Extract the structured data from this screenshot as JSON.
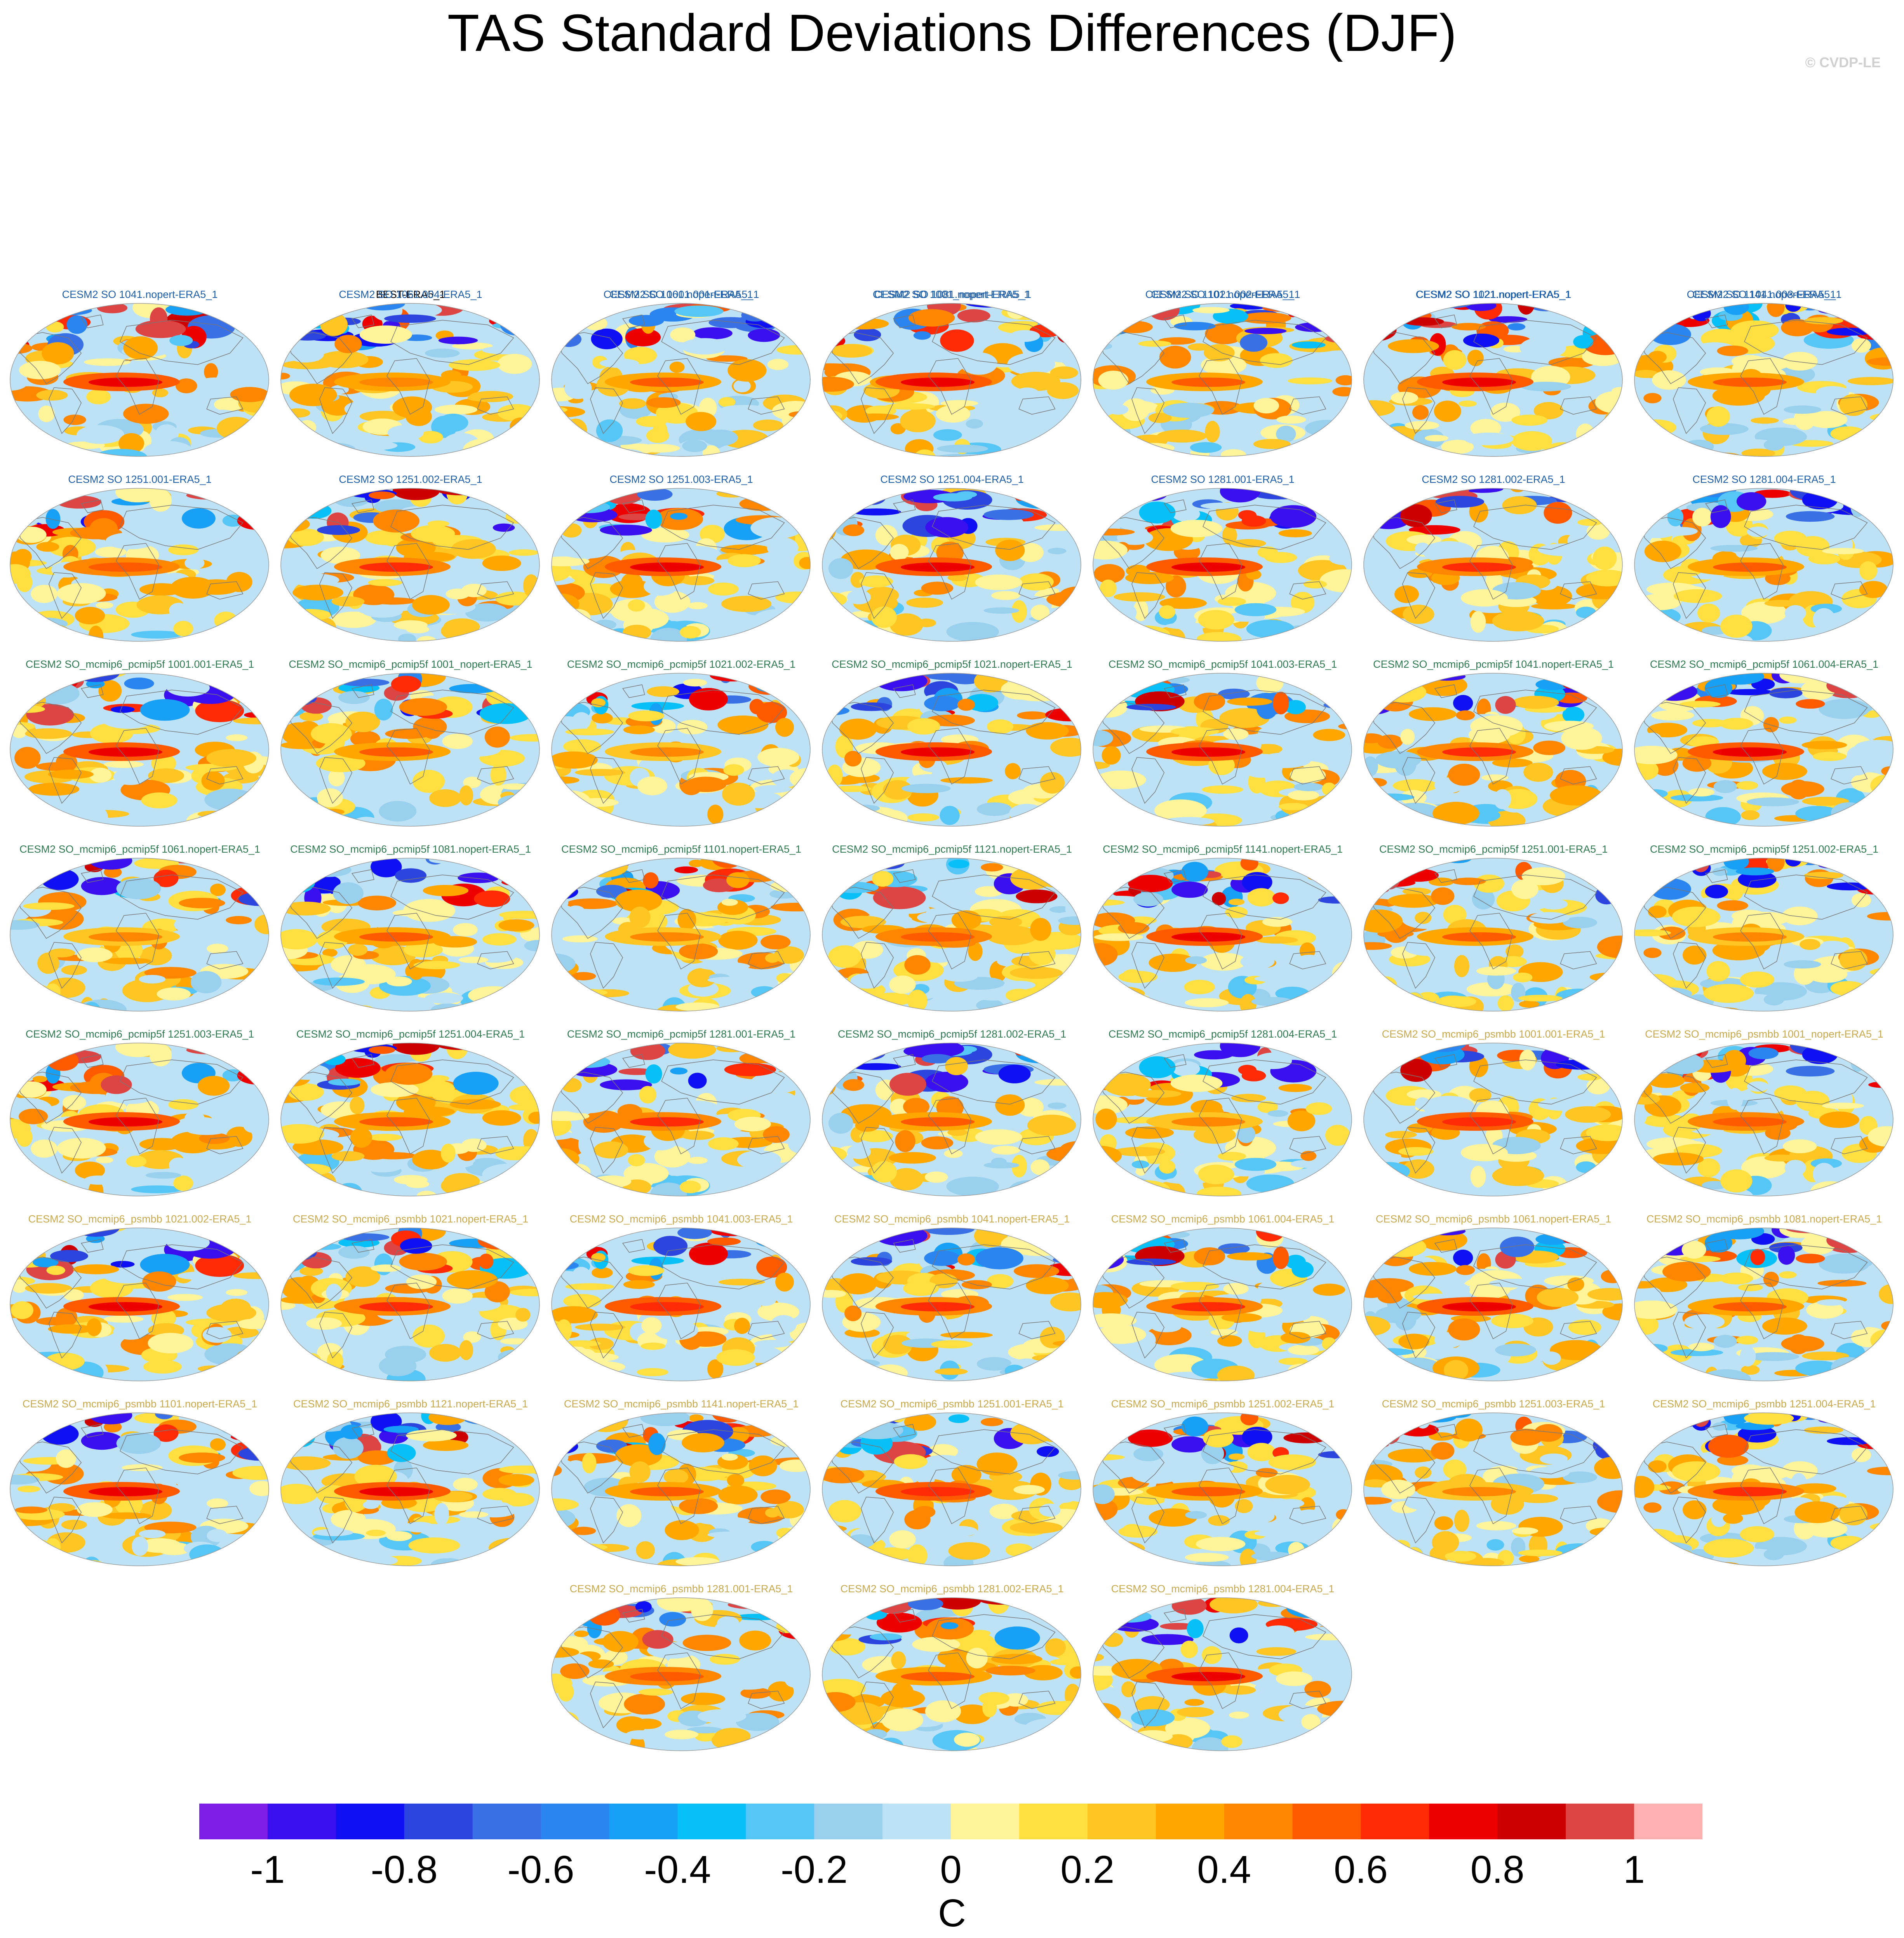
{
  "title": "TAS Standard Deviations Differences (DJF)",
  "credit": "© CVDP-LE",
  "chart_data": {
    "type": "heatmap",
    "title": "TAS Standard Deviations Differences (DJF)",
    "projection": "robinson-like global maps",
    "panel_colors": {
      "BEST": "#000000",
      "SO": "#1f5fa8",
      "pcmip5f": "#2f7a50",
      "psmbb": "#c9a94e"
    },
    "panels": [
      {
        "label": "BEST-ERA5_1",
        "group": "BEST"
      },
      {
        "label": "CESM2 SO 1001.001-ERA5_1",
        "group": "SO"
      },
      {
        "label": "CESM2 SO 1001_nopert-ERA5_1",
        "group": "SO"
      },
      {
        "label": "CESM2 SO 1021.002-ERA5_1",
        "group": "SO"
      },
      {
        "label": "CESM2 SO 1021.nopert-ERA5_1",
        "group": "SO"
      },
      {
        "label": "CESM2 SO 1041.003-ERA5_1",
        "group": "SO"
      },
      {
        "label": "CESM2 SO 1041.nopert-ERA5_1",
        "group": "SO"
      },
      {
        "label": "CESM2 SO 1061.004-ERA5_1",
        "group": "SO"
      },
      {
        "label": "CESM2 SO 1061.nopert-ERA5_1",
        "group": "SO"
      },
      {
        "label": "CESM2 SO 1081.nopert-ERA5_1",
        "group": "SO"
      },
      {
        "label": "CESM2 SO 1101.nopert-ERA5_1",
        "group": "SO"
      },
      {
        "label": "CESM2 SO 1121.nopert-ERA5_1",
        "group": "SO"
      },
      {
        "label": "CESM2 SO 1141.nopert-ERA5_1",
        "group": "SO"
      },
      {
        "label": "CESM2 SO 1251.001-ERA5_1",
        "group": "SO"
      },
      {
        "label": "CESM2 SO 1251.002-ERA5_1",
        "group": "SO"
      },
      {
        "label": "CESM2 SO 1251.003-ERA5_1",
        "group": "SO"
      },
      {
        "label": "CESM2 SO 1251.004-ERA5_1",
        "group": "SO"
      },
      {
        "label": "CESM2 SO 1281.001-ERA5_1",
        "group": "SO"
      },
      {
        "label": "CESM2 SO 1281.002-ERA5_1",
        "group": "SO"
      },
      {
        "label": "CESM2 SO 1281.004-ERA5_1",
        "group": "SO"
      },
      {
        "label": "CESM2 SO_mcmip6_pcmip5f 1001.001-ERA5_1",
        "group": "pcmip5f"
      },
      {
        "label": "CESM2 SO_mcmip6_pcmip5f 1001_nopert-ERA5_1",
        "group": "pcmip5f"
      },
      {
        "label": "CESM2 SO_mcmip6_pcmip5f 1021.002-ERA5_1",
        "group": "pcmip5f"
      },
      {
        "label": "CESM2 SO_mcmip6_pcmip5f 1021.nopert-ERA5_1",
        "group": "pcmip5f"
      },
      {
        "label": "CESM2 SO_mcmip6_pcmip5f 1041.003-ERA5_1",
        "group": "pcmip5f"
      },
      {
        "label": "CESM2 SO_mcmip6_pcmip5f 1041.nopert-ERA5_1",
        "group": "pcmip5f"
      },
      {
        "label": "CESM2 SO_mcmip6_pcmip5f 1061.004-ERA5_1",
        "group": "pcmip5f"
      },
      {
        "label": "CESM2 SO_mcmip6_pcmip5f 1061.nopert-ERA5_1",
        "group": "pcmip5f"
      },
      {
        "label": "CESM2 SO_mcmip6_pcmip5f 1081.nopert-ERA5_1",
        "group": "pcmip5f"
      },
      {
        "label": "CESM2 SO_mcmip6_pcmip5f 1101.nopert-ERA5_1",
        "group": "pcmip5f"
      },
      {
        "label": "CESM2 SO_mcmip6_pcmip5f 1121.nopert-ERA5_1",
        "group": "pcmip5f"
      },
      {
        "label": "CESM2 SO_mcmip6_pcmip5f 1141.nopert-ERA5_1",
        "group": "pcmip5f"
      },
      {
        "label": "CESM2 SO_mcmip6_pcmip5f 1251.001-ERA5_1",
        "group": "pcmip5f"
      },
      {
        "label": "CESM2 SO_mcmip6_pcmip5f 1251.002-ERA5_1",
        "group": "pcmip5f"
      },
      {
        "label": "CESM2 SO_mcmip6_pcmip5f 1251.003-ERA5_1",
        "group": "pcmip5f"
      },
      {
        "label": "CESM2 SO_mcmip6_pcmip5f 1251.004-ERA5_1",
        "group": "pcmip5f"
      },
      {
        "label": "CESM2 SO_mcmip6_pcmip5f 1281.001-ERA5_1",
        "group": "pcmip5f"
      },
      {
        "label": "CESM2 SO_mcmip6_pcmip5f 1281.002-ERA5_1",
        "group": "pcmip5f"
      },
      {
        "label": "CESM2 SO_mcmip6_pcmip5f 1281.004-ERA5_1",
        "group": "pcmip5f"
      },
      {
        "label": "CESM2 SO_mcmip6_psmbb 1001.001-ERA5_1",
        "group": "psmbb"
      },
      {
        "label": "CESM2 SO_mcmip6_psmbb 1001_nopert-ERA5_1",
        "group": "psmbb"
      },
      {
        "label": "CESM2 SO_mcmip6_psmbb 1021.002-ERA5_1",
        "group": "psmbb"
      },
      {
        "label": "CESM2 SO_mcmip6_psmbb 1021.nopert-ERA5_1",
        "group": "psmbb"
      },
      {
        "label": "CESM2 SO_mcmip6_psmbb 1041.003-ERA5_1",
        "group": "psmbb"
      },
      {
        "label": "CESM2 SO_mcmip6_psmbb 1041.nopert-ERA5_1",
        "group": "psmbb"
      },
      {
        "label": "CESM2 SO_mcmip6_psmbb 1061.004-ERA5_1",
        "group": "psmbb"
      },
      {
        "label": "CESM2 SO_mcmip6_psmbb 1061.nopert-ERA5_1",
        "group": "psmbb"
      },
      {
        "label": "CESM2 SO_mcmip6_psmbb 1081.nopert-ERA5_1",
        "group": "psmbb"
      },
      {
        "label": "CESM2 SO_mcmip6_psmbb 1101.nopert-ERA5_1",
        "group": "psmbb"
      },
      {
        "label": "CESM2 SO_mcmip6_psmbb 1121.nopert-ERA5_1",
        "group": "psmbb"
      },
      {
        "label": "CESM2 SO_mcmip6_psmbb 1141.nopert-ERA5_1",
        "group": "psmbb"
      },
      {
        "label": "CESM2 SO_mcmip6_psmbb 1251.001-ERA5_1",
        "group": "psmbb"
      },
      {
        "label": "CESM2 SO_mcmip6_psmbb 1251.002-ERA5_1",
        "group": "psmbb"
      },
      {
        "label": "CESM2 SO_mcmip6_psmbb 1251.003-ERA5_1",
        "group": "psmbb"
      },
      {
        "label": "CESM2 SO_mcmip6_psmbb 1251.004-ERA5_1",
        "group": "psmbb"
      },
      {
        "label": "CESM2 SO_mcmip6_psmbb 1281.001-ERA5_1",
        "group": "psmbb"
      },
      {
        "label": "CESM2 SO_mcmip6_psmbb 1281.002-ERA5_1",
        "group": "psmbb"
      },
      {
        "label": "CESM2 SO_mcmip6_psmbb 1281.004-ERA5_1",
        "group": "psmbb"
      }
    ],
    "colorbar": {
      "units": "C",
      "range": [
        -1.1,
        1.1
      ],
      "bins": 22,
      "colors": [
        "#7e1fe8",
        "#3a10f0",
        "#1010f5",
        "#2c45de",
        "#3a70e6",
        "#2a85f0",
        "#18a0f6",
        "#08c0f8",
        "#55c6f6",
        "#98d0ee",
        "#bde2f6",
        "#fff49a",
        "#ffe040",
        "#ffc522",
        "#ffa700",
        "#ff8600",
        "#ff5a00",
        "#ff2a06",
        "#ee0000",
        "#cc0000",
        "#dd4444",
        "#ffb0b0"
      ],
      "tick_values": [
        -1,
        -0.8,
        -0.6,
        -0.4,
        -0.2,
        0,
        0.2,
        0.4,
        0.6,
        0.8,
        1
      ],
      "tick_labels": [
        "-1",
        "-0.8",
        "-0.6",
        "-0.4",
        "-0.2",
        "0",
        "0.2",
        "0.4",
        "0.6",
        "0.8",
        "1"
      ]
    }
  }
}
